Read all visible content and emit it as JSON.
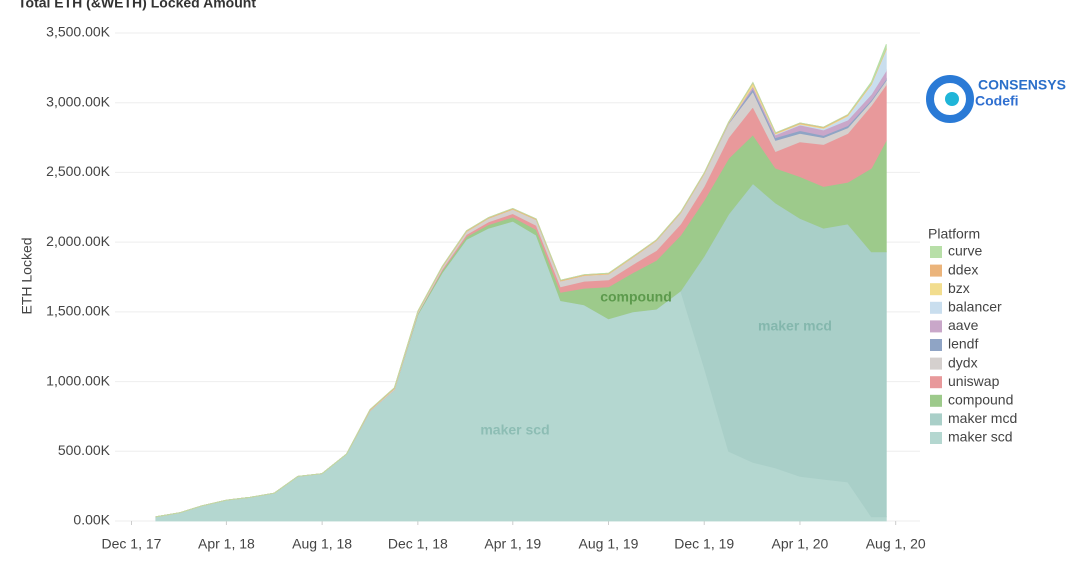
{
  "chart_data": {
    "type": "stacked-area",
    "title": "Total ETH (&WETH) Locked Amount",
    "y_label": "ETH Locked",
    "legend_title": "Platform",
    "legend": "right",
    "grid": true,
    "annotations": [
      "maker scd",
      "compound",
      "maker mcd"
    ],
    "x": [
      "2018-01-01",
      "2018-02-01",
      "2018-03-01",
      "2018-04-01",
      "2018-05-01",
      "2018-06-01",
      "2018-07-01",
      "2018-08-01",
      "2018-09-01",
      "2018-10-01",
      "2018-11-01",
      "2018-12-01",
      "2019-01-01",
      "2019-02-01",
      "2019-03-01",
      "2019-04-01",
      "2019-05-01",
      "2019-06-01",
      "2019-07-01",
      "2019-08-01",
      "2019-09-01",
      "2019-10-01",
      "2019-11-01",
      "2019-12-01",
      "2020-01-01",
      "2020-02-01",
      "2020-03-01",
      "2020-04-01",
      "2020-05-01",
      "2020-06-01",
      "2020-07-01",
      "2020-07-20"
    ],
    "xlim": [
      "2017-11-10",
      "2020-09-01"
    ],
    "xticks": [
      {
        "value": "2017-12-01",
        "label": "Dec 1, 17"
      },
      {
        "value": "2018-04-01",
        "label": "Apr 1, 18"
      },
      {
        "value": "2018-08-01",
        "label": "Aug 1, 18"
      },
      {
        "value": "2018-12-01",
        "label": "Dec 1, 18"
      },
      {
        "value": "2019-04-01",
        "label": "Apr 1, 19"
      },
      {
        "value": "2019-08-01",
        "label": "Aug 1, 19"
      },
      {
        "value": "2019-12-01",
        "label": "Dec 1, 19"
      },
      {
        "value": "2020-04-01",
        "label": "Apr 1, 20"
      },
      {
        "value": "2020-08-01",
        "label": "Aug 1, 20"
      }
    ],
    "ylim": [
      0,
      3500000
    ],
    "yticks": [
      {
        "value": 0,
        "label": "0.00K"
      },
      {
        "value": 500000,
        "label": "500.00K"
      },
      {
        "value": 1000000,
        "label": "1,000.00K"
      },
      {
        "value": 1500000,
        "label": "1,500.00K"
      },
      {
        "value": 2000000,
        "label": "2,000.00K"
      },
      {
        "value": 2500000,
        "label": "2,500.00K"
      },
      {
        "value": 3000000,
        "label": "3,000.00K"
      },
      {
        "value": 3500000,
        "label": "3,500.00K"
      }
    ],
    "series": [
      {
        "name": "maker scd",
        "color": "#b4d7d0",
        "values": [
          30000,
          60000,
          110000,
          150000,
          170000,
          200000,
          320000,
          340000,
          480000,
          790000,
          940000,
          1480000,
          1780000,
          2020000,
          2100000,
          2150000,
          2050000,
          1580000,
          1550000,
          1450000,
          1500000,
          1520000,
          1650000,
          1100000,
          500000,
          420000,
          380000,
          320000,
          300000,
          280000,
          30000,
          30000
        ]
      },
      {
        "name": "maker mcd",
        "color": "#a9cfc8",
        "values": [
          0,
          0,
          0,
          0,
          0,
          0,
          0,
          0,
          0,
          0,
          0,
          0,
          0,
          0,
          0,
          0,
          0,
          0,
          0,
          0,
          0,
          0,
          0,
          800000,
          1700000,
          2000000,
          1900000,
          1850000,
          1800000,
          1850000,
          1900000,
          1900000
        ]
      },
      {
        "name": "compound",
        "color": "#9dca8b",
        "values": [
          0,
          0,
          0,
          0,
          0,
          0,
          0,
          0,
          0,
          0,
          0,
          10000,
          15000,
          20000,
          25000,
          30000,
          40000,
          60000,
          120000,
          230000,
          280000,
          350000,
          400000,
          400000,
          400000,
          350000,
          250000,
          300000,
          300000,
          300000,
          600000,
          800000
        ]
      },
      {
        "name": "uniswap",
        "color": "#e8999b",
        "values": [
          0,
          0,
          0,
          0,
          0,
          0,
          0,
          0,
          0,
          0,
          0,
          0,
          10000,
          15000,
          20000,
          25000,
          30000,
          40000,
          50000,
          50000,
          60000,
          70000,
          80000,
          100000,
          150000,
          200000,
          120000,
          250000,
          300000,
          350000,
          450000,
          400000
        ]
      },
      {
        "name": "dydx",
        "color": "#d5d0ce",
        "values": [
          0,
          0,
          0,
          0,
          0,
          0,
          0,
          0,
          0,
          5000,
          8000,
          10000,
          15000,
          20000,
          25000,
          30000,
          40000,
          40000,
          40000,
          40000,
          50000,
          70000,
          80000,
          90000,
          100000,
          110000,
          80000,
          60000,
          50000,
          40000,
          30000,
          30000
        ]
      },
      {
        "name": "lendf",
        "color": "#8fa4c5",
        "values": [
          0,
          0,
          0,
          0,
          0,
          0,
          0,
          0,
          0,
          0,
          0,
          0,
          0,
          0,
          0,
          0,
          0,
          0,
          0,
          0,
          0,
          0,
          0,
          0,
          5000,
          20000,
          20000,
          20000,
          15000,
          15000,
          10000,
          10000
        ]
      },
      {
        "name": "aave",
        "color": "#c9a7c9",
        "values": [
          0,
          0,
          0,
          0,
          0,
          0,
          0,
          0,
          0,
          0,
          0,
          0,
          0,
          0,
          0,
          0,
          0,
          0,
          0,
          0,
          0,
          0,
          0,
          0,
          0,
          20000,
          20000,
          40000,
          40000,
          40000,
          40000,
          60000
        ]
      },
      {
        "name": "balancer",
        "color": "#c9deee",
        "values": [
          0,
          0,
          0,
          0,
          0,
          0,
          0,
          0,
          0,
          0,
          0,
          0,
          0,
          0,
          0,
          0,
          0,
          0,
          0,
          0,
          0,
          0,
          0,
          0,
          0,
          0,
          5000,
          5000,
          10000,
          30000,
          70000,
          150000
        ]
      },
      {
        "name": "bzx",
        "color": "#f2dd8e",
        "values": [
          0,
          0,
          0,
          0,
          0,
          0,
          0,
          0,
          0,
          0,
          2000,
          2000,
          2000,
          2000,
          2000,
          2000,
          2000,
          2000,
          2000,
          2000,
          2000,
          2000,
          2000,
          2000,
          2000,
          20000,
          5000,
          5000,
          5000,
          5000,
          5000,
          5000
        ]
      },
      {
        "name": "ddex",
        "color": "#ebb47b",
        "values": [
          0,
          0,
          0,
          0,
          0,
          0,
          0,
          0,
          0,
          5000,
          5000,
          5000,
          5000,
          5000,
          5000,
          5000,
          5000,
          5000,
          5000,
          5000,
          5000,
          5000,
          5000,
          5000,
          5000,
          5000,
          5000,
          5000,
          5000,
          5000,
          5000,
          5000
        ]
      },
      {
        "name": "curve",
        "color": "#b8dfa8",
        "values": [
          0,
          0,
          0,
          0,
          0,
          0,
          0,
          0,
          0,
          0,
          0,
          0,
          0,
          0,
          0,
          0,
          0,
          0,
          0,
          0,
          0,
          0,
          0,
          0,
          0,
          0,
          0,
          0,
          0,
          0,
          10000,
          30000
        ]
      }
    ]
  },
  "logo": {
    "brand": "CONSENSYS",
    "name": "Codefi"
  }
}
